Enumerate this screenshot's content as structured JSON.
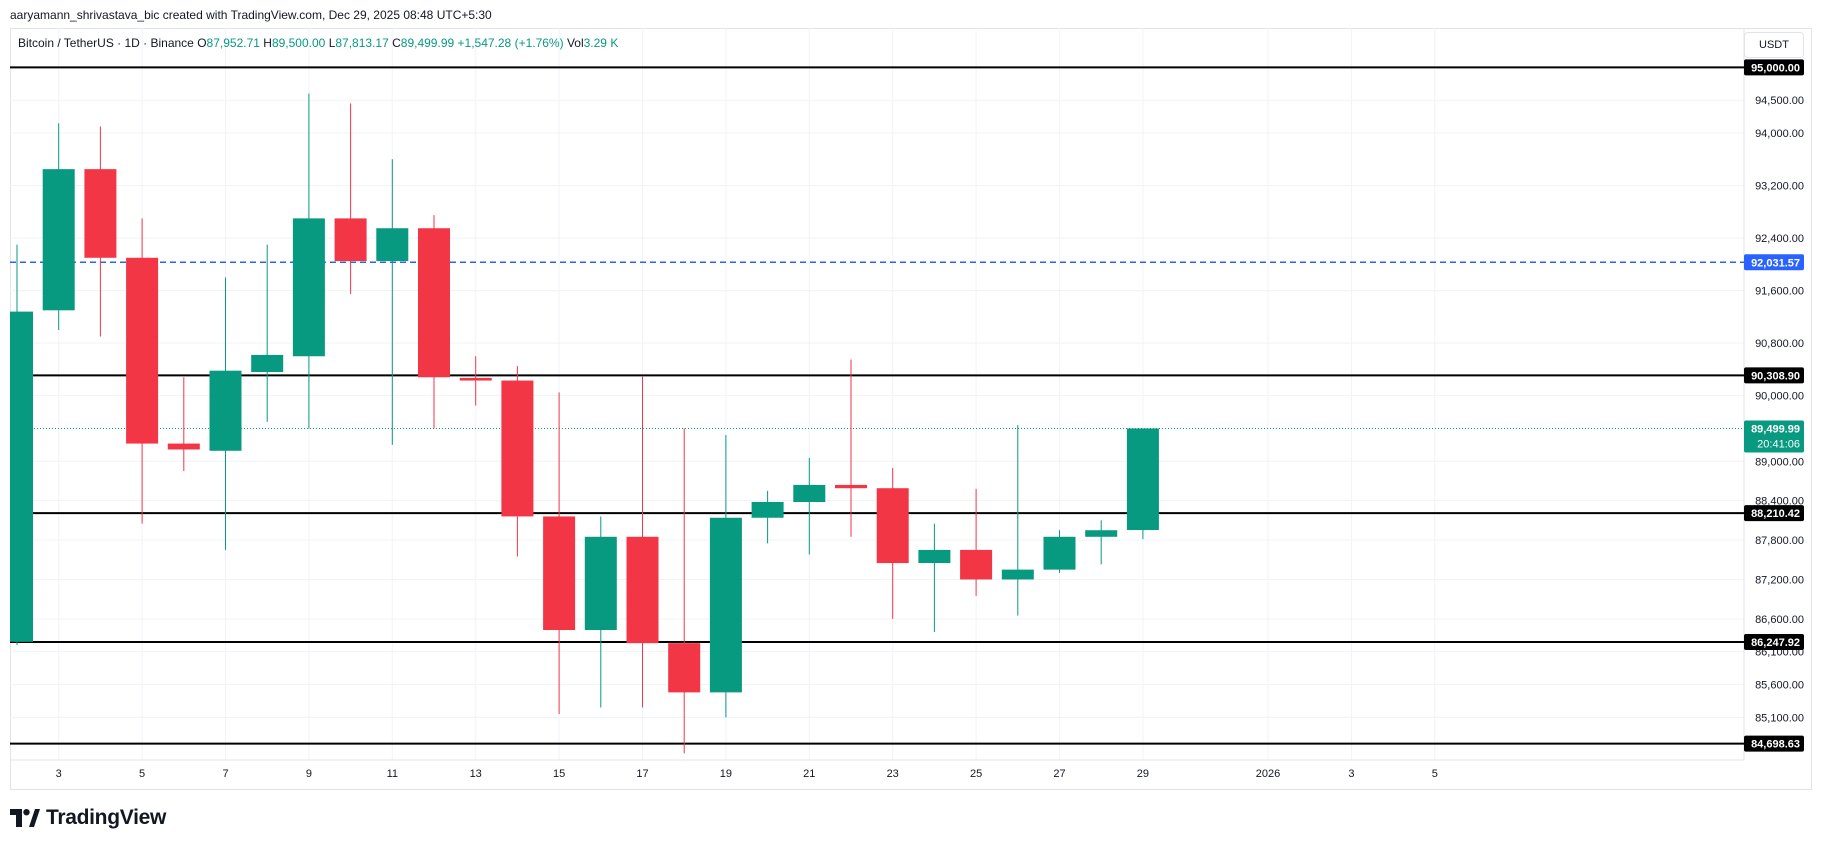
{
  "header": {
    "attribution": "aaryamann_shrivastava_bic created with TradingView.com, Dec 29, 2025 08:48 UTC+5:30"
  },
  "legend": {
    "symbol": "Bitcoin / TetherUS · 1D · Binance",
    "o_label": "O",
    "o_value": "87,952.71",
    "h_label": "H",
    "h_value": "89,500.00",
    "l_label": "L",
    "l_value": "87,813.17",
    "c_label": "C",
    "c_value": "89,499.99",
    "change": "+1,547.28 (+1.76%)",
    "vol_label": "Vol",
    "vol_value": "3.29 K"
  },
  "currency_button": "USDT",
  "brand": {
    "name": "TradingView"
  },
  "colors": {
    "up": "#089981",
    "down": "#f23645",
    "blue_line": "#2962ff",
    "grid": "#f0f3fa",
    "axis_text": "#131722"
  },
  "chart_data": {
    "type": "candlestick",
    "title": "",
    "xlabel": "",
    "ylabel": "",
    "ylim": [
      84450,
      95600
    ],
    "y_ticks": [
      "94,500.00",
      "94,000.00",
      "93,200.00",
      "92,400.00",
      "91,600.00",
      "90,800.00",
      "90,000.00",
      "89,000.00",
      "88,400.00",
      "87,800.00",
      "87,200.00",
      "86,600.00",
      "86,100.00",
      "85,600.00",
      "85,100.00"
    ],
    "y_tick_values": [
      94500,
      94000,
      93200,
      92400,
      91600,
      90800,
      90000,
      89000,
      88400,
      87800,
      87200,
      86600,
      86100,
      85600,
      85100
    ],
    "x_ticks": [
      {
        "label": "3",
        "index": 1
      },
      {
        "label": "5",
        "index": 3
      },
      {
        "label": "7",
        "index": 5
      },
      {
        "label": "9",
        "index": 7
      },
      {
        "label": "11",
        "index": 9
      },
      {
        "label": "13",
        "index": 11
      },
      {
        "label": "15",
        "index": 13
      },
      {
        "label": "17",
        "index": 15
      },
      {
        "label": "19",
        "index": 17
      },
      {
        "label": "21",
        "index": 19
      },
      {
        "label": "23",
        "index": 21
      },
      {
        "label": "25",
        "index": 23
      },
      {
        "label": "27",
        "index": 25
      },
      {
        "label": "29",
        "index": 27
      },
      {
        "label": "2026",
        "index": 30
      },
      {
        "label": "3",
        "index": 32
      },
      {
        "label": "5",
        "index": 34
      }
    ],
    "candles": [
      {
        "day": "Dec 2",
        "open": 86250,
        "high": 92300,
        "low": 86200,
        "close": 91280
      },
      {
        "day": "Dec 3",
        "open": 91300,
        "high": 94150,
        "low": 91000,
        "close": 93450
      },
      {
        "day": "Dec 4",
        "open": 93450,
        "high": 94100,
        "low": 90900,
        "close": 92100
      },
      {
        "day": "Dec 5",
        "open": 92100,
        "high": 92700,
        "low": 88050,
        "close": 89270
      },
      {
        "day": "Dec 6",
        "open": 89270,
        "high": 90280,
        "low": 88850,
        "close": 89180
      },
      {
        "day": "Dec 7",
        "open": 89160,
        "high": 91800,
        "low": 87650,
        "close": 90380
      },
      {
        "day": "Dec 8",
        "open": 90360,
        "high": 92300,
        "low": 89600,
        "close": 90620
      },
      {
        "day": "Dec 9",
        "open": 90600,
        "high": 94600,
        "low": 89500,
        "close": 92700
      },
      {
        "day": "Dec 10",
        "open": 92700,
        "high": 94450,
        "low": 91550,
        "close": 92050
      },
      {
        "day": "Dec 11",
        "open": 92050,
        "high": 93600,
        "low": 89250,
        "close": 92550
      },
      {
        "day": "Dec 12",
        "open": 92550,
        "high": 92750,
        "low": 89500,
        "close": 90280
      },
      {
        "day": "Dec 13",
        "open": 90270,
        "high": 90600,
        "low": 89850,
        "close": 90230
      },
      {
        "day": "Dec 14",
        "open": 90230,
        "high": 90450,
        "low": 87550,
        "close": 88160
      },
      {
        "day": "Dec 15",
        "open": 88160,
        "high": 90050,
        "low": 85150,
        "close": 86430
      },
      {
        "day": "Dec 16",
        "open": 86430,
        "high": 88160,
        "low": 85250,
        "close": 87850
      },
      {
        "day": "Dec 17",
        "open": 87850,
        "high": 90300,
        "low": 85250,
        "close": 86230
      },
      {
        "day": "Dec 18",
        "open": 86230,
        "high": 89500,
        "low": 84550,
        "close": 85480
      },
      {
        "day": "Dec 19",
        "open": 85480,
        "high": 89400,
        "low": 85100,
        "close": 88140
      },
      {
        "day": "Dec 20",
        "open": 88140,
        "high": 88550,
        "low": 87750,
        "close": 88380
      },
      {
        "day": "Dec 21",
        "open": 88380,
        "high": 89050,
        "low": 87580,
        "close": 88640
      },
      {
        "day": "Dec 22",
        "open": 88640,
        "high": 90550,
        "low": 87850,
        "close": 88590
      },
      {
        "day": "Dec 23",
        "open": 88590,
        "high": 88900,
        "low": 86600,
        "close": 87450
      },
      {
        "day": "Dec 24",
        "open": 87450,
        "high": 88050,
        "low": 86400,
        "close": 87650
      },
      {
        "day": "Dec 25",
        "open": 87650,
        "high": 88580,
        "low": 86950,
        "close": 87200
      },
      {
        "day": "Dec 26",
        "open": 87200,
        "high": 89550,
        "low": 86650,
        "close": 87350
      },
      {
        "day": "Dec 27",
        "open": 87350,
        "high": 87950,
        "low": 87300,
        "close": 87850
      },
      {
        "day": "Dec 28",
        "open": 87850,
        "high": 88100,
        "low": 87430,
        "close": 87950
      },
      {
        "day": "Dec 29",
        "open": 87952.71,
        "high": 89500,
        "low": 87813.17,
        "close": 89499.99
      }
    ],
    "horizontal_lines": [
      {
        "value": 95000,
        "label": "95,000.00",
        "style": "solid",
        "color": "#000000"
      },
      {
        "value": 92031.57,
        "label": "92,031.57",
        "style": "dashed",
        "color": "#2962ff"
      },
      {
        "value": 90308.9,
        "label": "90,308.90",
        "style": "solid",
        "color": "#000000"
      },
      {
        "value": 88210.42,
        "label": "88,210.42",
        "style": "solid",
        "color": "#000000"
      },
      {
        "value": 86247.92,
        "label": "86,247.92",
        "style": "solid",
        "color": "#000000"
      },
      {
        "value": 84698.63,
        "label": "84,698.63",
        "style": "solid",
        "color": "#000000"
      }
    ],
    "last_price": {
      "value": 89499.99,
      "label": "89,499.99",
      "countdown": "20:41:06",
      "color": "#089981"
    },
    "grid": true
  }
}
